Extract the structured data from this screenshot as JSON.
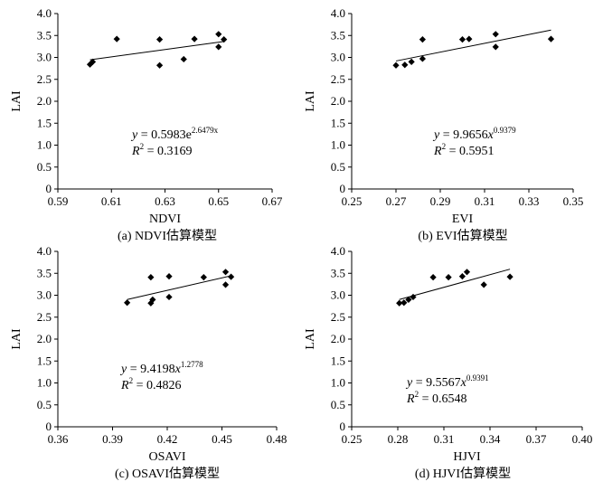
{
  "chart_data": [
    {
      "type": "scatter",
      "panel": "a",
      "caption": "(a) NDVI估算模型",
      "xlabel": "NDVI",
      "ylabel": "LAI",
      "xlim": [
        0.59,
        0.67
      ],
      "ylim": [
        0,
        4.0
      ],
      "xticks": [
        "0.59",
        "0.61",
        "0.63",
        "0.65",
        "0.67"
      ],
      "yticks": [
        "0",
        "0.5",
        "1.0",
        "1.5",
        "2.0",
        "2.5",
        "3.0",
        "3.5",
        "4.0"
      ],
      "grid": false,
      "points": [
        {
          "x": 0.602,
          "y": 2.84
        },
        {
          "x": 0.603,
          "y": 2.9
        },
        {
          "x": 0.612,
          "y": 3.42
        },
        {
          "x": 0.628,
          "y": 2.82
        },
        {
          "x": 0.628,
          "y": 3.41
        },
        {
          "x": 0.637,
          "y": 2.96
        },
        {
          "x": 0.641,
          "y": 3.42
        },
        {
          "x": 0.65,
          "y": 3.53
        },
        {
          "x": 0.65,
          "y": 3.24
        },
        {
          "x": 0.652,
          "y": 3.41
        }
      ],
      "fit": {
        "model": "exponential",
        "a": 0.5983,
        "b": 2.6479,
        "x_range": [
          0.602,
          0.652
        ],
        "equation_lines": [
          [
            {
              "t": "y",
              "s": "it"
            },
            {
              "t": " = 0.5983e",
              "s": ""
            },
            {
              "t": "2.6479x",
              "s": "sup"
            }
          ],
          [
            {
              "t": "R",
              "s": "it"
            },
            {
              "t": "2",
              "s": "sup"
            },
            {
              "t": " = 0.3169",
              "s": ""
            }
          ]
        ]
      }
    },
    {
      "type": "scatter",
      "panel": "b",
      "caption": "(b) EVI估算模型",
      "xlabel": "EVI",
      "ylabel": "LAI",
      "xlim": [
        0.25,
        0.35
      ],
      "ylim": [
        0,
        4.0
      ],
      "xticks": [
        "0.25",
        "0.27",
        "0.29",
        "0.31",
        "0.33",
        "0.35"
      ],
      "yticks": [
        "0",
        "0.5",
        "1.0",
        "1.5",
        "2.0",
        "2.5",
        "3.0",
        "3.5",
        "4.0"
      ],
      "grid": false,
      "points": [
        {
          "x": 0.27,
          "y": 2.82
        },
        {
          "x": 0.274,
          "y": 2.83
        },
        {
          "x": 0.277,
          "y": 2.9
        },
        {
          "x": 0.282,
          "y": 2.97
        },
        {
          "x": 0.282,
          "y": 3.41
        },
        {
          "x": 0.3,
          "y": 3.41
        },
        {
          "x": 0.303,
          "y": 3.42
        },
        {
          "x": 0.315,
          "y": 3.53
        },
        {
          "x": 0.315,
          "y": 3.24
        },
        {
          "x": 0.34,
          "y": 3.42
        }
      ],
      "fit": {
        "model": "power",
        "a": 9.9656,
        "b": 0.9379,
        "x_range": [
          0.27,
          0.34
        ],
        "equation_lines": [
          [
            {
              "t": "y",
              "s": "it"
            },
            {
              "t": " = 9.9656",
              "s": ""
            },
            {
              "t": "x",
              "s": "it"
            },
            {
              "t": "0.9379",
              "s": "sup"
            }
          ],
          [
            {
              "t": "R",
              "s": "it"
            },
            {
              "t": "2",
              "s": "sup"
            },
            {
              "t": " = 0.5951",
              "s": ""
            }
          ]
        ]
      }
    },
    {
      "type": "scatter",
      "panel": "c",
      "caption": "(c) OSAVI估算模型",
      "xlabel": "OSAVI",
      "ylabel": "LAI",
      "xlim": [
        0.36,
        0.48
      ],
      "ylim": [
        0,
        4.0
      ],
      "xticks": [
        "0.36",
        "0.39",
        "0.42",
        "0.45",
        "0.48"
      ],
      "yticks": [
        "0",
        "0.5",
        "1.0",
        "1.5",
        "2.0",
        "2.5",
        "3.0",
        "3.5",
        "4.0"
      ],
      "grid": false,
      "points": [
        {
          "x": 0.398,
          "y": 2.83
        },
        {
          "x": 0.411,
          "y": 2.82
        },
        {
          "x": 0.411,
          "y": 3.41
        },
        {
          "x": 0.412,
          "y": 2.9
        },
        {
          "x": 0.421,
          "y": 2.96
        },
        {
          "x": 0.421,
          "y": 3.43
        },
        {
          "x": 0.44,
          "y": 3.41
        },
        {
          "x": 0.452,
          "y": 3.53
        },
        {
          "x": 0.452,
          "y": 3.24
        },
        {
          "x": 0.455,
          "y": 3.42
        }
      ],
      "fit": {
        "model": "power",
        "a": 9.4198,
        "b": 1.2778,
        "x_range": [
          0.398,
          0.455
        ],
        "equation_lines": [
          [
            {
              "t": "y",
              "s": "it"
            },
            {
              "t": " = 9.4198",
              "s": ""
            },
            {
              "t": "x",
              "s": "it"
            },
            {
              "t": "1.2778",
              "s": "sup"
            }
          ],
          [
            {
              "t": "R",
              "s": "it"
            },
            {
              "t": "2",
              "s": "sup"
            },
            {
              "t": " = 0.4826",
              "s": ""
            }
          ]
        ]
      }
    },
    {
      "type": "scatter",
      "panel": "d",
      "caption": "(d) HJVI估算模型",
      "xlabel": "HJVI",
      "ylabel": "LAI",
      "xlim": [
        0.25,
        0.4
      ],
      "ylim": [
        0,
        4.0
      ],
      "xticks": [
        "0.25",
        "0.28",
        "0.31",
        "0.34",
        "0.37",
        "0.40"
      ],
      "yticks": [
        "0",
        "0.5",
        "1.0",
        "1.5",
        "2.0",
        "2.5",
        "3.0",
        "3.5",
        "4.0"
      ],
      "grid": false,
      "points": [
        {
          "x": 0.281,
          "y": 2.82
        },
        {
          "x": 0.284,
          "y": 2.83
        },
        {
          "x": 0.287,
          "y": 2.9
        },
        {
          "x": 0.29,
          "y": 2.96
        },
        {
          "x": 0.303,
          "y": 3.41
        },
        {
          "x": 0.313,
          "y": 3.41
        },
        {
          "x": 0.322,
          "y": 3.43
        },
        {
          "x": 0.325,
          "y": 3.53
        },
        {
          "x": 0.336,
          "y": 3.24
        },
        {
          "x": 0.353,
          "y": 3.42
        }
      ],
      "fit": {
        "model": "power",
        "a": 9.5567,
        "b": 0.9391,
        "x_range": [
          0.281,
          0.353
        ],
        "equation_lines": [
          [
            {
              "t": "y",
              "s": "it"
            },
            {
              "t": " = 9.5567",
              "s": ""
            },
            {
              "t": "x",
              "s": "it"
            },
            {
              "t": "0.9391",
              "s": "sup"
            }
          ],
          [
            {
              "t": "R",
              "s": "it"
            },
            {
              "t": "2",
              "s": "sup"
            },
            {
              "t": " = 0.6548",
              "s": ""
            }
          ]
        ]
      }
    }
  ]
}
